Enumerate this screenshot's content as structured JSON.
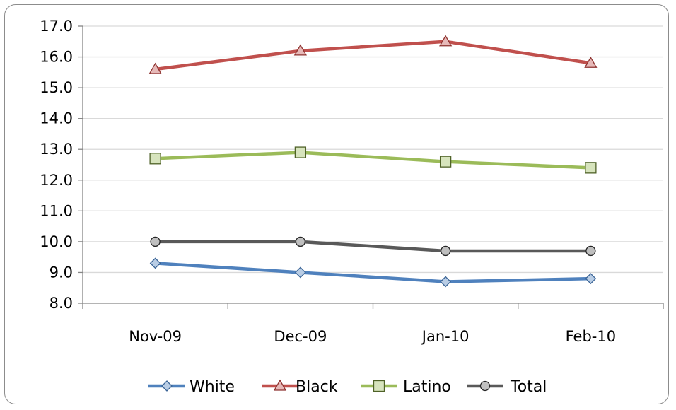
{
  "chart_data": {
    "type": "line",
    "title": "",
    "xlabel": "",
    "ylabel": "",
    "categories": [
      "Nov-09",
      "Dec-09",
      "Jan-10",
      "Feb-10"
    ],
    "ylim": [
      8.0,
      17.0
    ],
    "yticks": [
      "8.0",
      "9.0",
      "10.0",
      "11.0",
      "12.0",
      "13.0",
      "14.0",
      "15.0",
      "16.0",
      "17.0"
    ],
    "grid": true,
    "legend_position": "bottom",
    "series": [
      {
        "name": "White",
        "values": [
          9.3,
          9.0,
          8.7,
          8.8
        ],
        "color": "#4f81bd",
        "marker_fill": "#b9cde5",
        "marker_stroke": "#3a6496",
        "marker": "diamond"
      },
      {
        "name": "Black",
        "values": [
          15.6,
          16.2,
          16.5,
          15.8
        ],
        "color": "#c0504d",
        "marker_fill": "#e6b9b8",
        "marker_stroke": "#8e3330",
        "marker": "triangle"
      },
      {
        "name": "Latino",
        "values": [
          12.7,
          12.9,
          12.6,
          12.4
        ],
        "color": "#9bbb59",
        "marker_fill": "#d7e4bd",
        "marker_stroke": "#4f6228",
        "marker": "square"
      },
      {
        "name": "Total",
        "values": [
          10.0,
          10.0,
          9.7,
          9.7
        ],
        "color": "#595959",
        "marker_fill": "#bfbfbf",
        "marker_stroke": "#262626",
        "marker": "circle"
      }
    ]
  }
}
